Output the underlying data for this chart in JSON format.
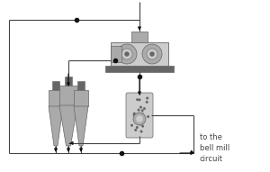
{
  "bg_color": "#ffffff",
  "line_color": "#444444",
  "equipment_color": "#aaaaaa",
  "equipment_dark": "#666666",
  "equipment_light": "#cccccc",
  "text_color": "#444444",
  "arrow_color": "#111111",
  "sample_point_color": "#111111",
  "label_text": "to the\nbell mill\ncircuit",
  "label_fontsize": 6.0
}
